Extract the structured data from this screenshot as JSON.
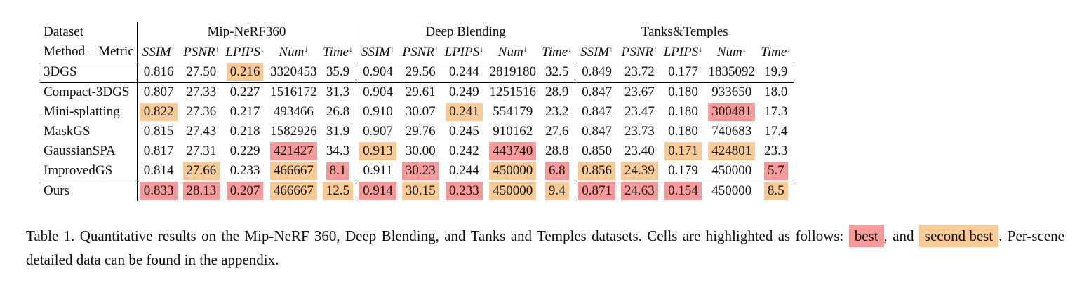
{
  "table": {
    "corner_top": "Dataset",
    "corner_bottom": "Method—Metric",
    "groups": [
      "Mip-NeRF360",
      "Deep Blending",
      "Tanks&Temples"
    ],
    "metrics": [
      {
        "name": "SSIM",
        "arrow": "↑"
      },
      {
        "name": "PSNR",
        "arrow": "↑"
      },
      {
        "name": "LPIPS",
        "arrow": "↓"
      },
      {
        "name": "Num",
        "arrow": "↓"
      },
      {
        "name": "Time",
        "arrow": "↓"
      }
    ],
    "rows": [
      {
        "method": "3DGS",
        "cells": [
          {
            "v": "0.816",
            "h": ""
          },
          {
            "v": "27.50",
            "h": ""
          },
          {
            "v": "0.216",
            "h": "second"
          },
          {
            "v": "3320453",
            "h": ""
          },
          {
            "v": "35.9",
            "h": ""
          },
          {
            "v": "0.904",
            "h": ""
          },
          {
            "v": "29.56",
            "h": ""
          },
          {
            "v": "0.244",
            "h": ""
          },
          {
            "v": "2819180",
            "h": ""
          },
          {
            "v": "32.5",
            "h": ""
          },
          {
            "v": "0.849",
            "h": ""
          },
          {
            "v": "23.72",
            "h": ""
          },
          {
            "v": "0.177",
            "h": ""
          },
          {
            "v": "1835092",
            "h": ""
          },
          {
            "v": "19.9",
            "h": ""
          }
        ]
      },
      {
        "method": "Compact-3DGS",
        "cells": [
          {
            "v": "0.807",
            "h": ""
          },
          {
            "v": "27.33",
            "h": ""
          },
          {
            "v": "0.227",
            "h": ""
          },
          {
            "v": "1516172",
            "h": ""
          },
          {
            "v": "31.3",
            "h": ""
          },
          {
            "v": "0.904",
            "h": ""
          },
          {
            "v": "29.61",
            "h": ""
          },
          {
            "v": "0.249",
            "h": ""
          },
          {
            "v": "1251516",
            "h": ""
          },
          {
            "v": "28.9",
            "h": ""
          },
          {
            "v": "0.847",
            "h": ""
          },
          {
            "v": "23.67",
            "h": ""
          },
          {
            "v": "0.180",
            "h": ""
          },
          {
            "v": "933650",
            "h": ""
          },
          {
            "v": "18.0",
            "h": ""
          }
        ]
      },
      {
        "method": "Mini-splatting",
        "cells": [
          {
            "v": "0.822",
            "h": "second"
          },
          {
            "v": "27.36",
            "h": ""
          },
          {
            "v": "0.217",
            "h": ""
          },
          {
            "v": "493466",
            "h": ""
          },
          {
            "v": "26.8",
            "h": ""
          },
          {
            "v": "0.910",
            "h": ""
          },
          {
            "v": "30.07",
            "h": ""
          },
          {
            "v": "0.241",
            "h": "second"
          },
          {
            "v": "554179",
            "h": ""
          },
          {
            "v": "23.2",
            "h": ""
          },
          {
            "v": "0.847",
            "h": ""
          },
          {
            "v": "23.47",
            "h": ""
          },
          {
            "v": "0.180",
            "h": ""
          },
          {
            "v": "300481",
            "h": "best"
          },
          {
            "v": "17.3",
            "h": ""
          }
        ]
      },
      {
        "method": "MaskGS",
        "cells": [
          {
            "v": "0.815",
            "h": ""
          },
          {
            "v": "27.43",
            "h": ""
          },
          {
            "v": "0.218",
            "h": ""
          },
          {
            "v": "1582926",
            "h": ""
          },
          {
            "v": "31.9",
            "h": ""
          },
          {
            "v": "0.907",
            "h": ""
          },
          {
            "v": "29.76",
            "h": ""
          },
          {
            "v": "0.245",
            "h": ""
          },
          {
            "v": "910162",
            "h": ""
          },
          {
            "v": "27.6",
            "h": ""
          },
          {
            "v": "0.847",
            "h": ""
          },
          {
            "v": "23.73",
            "h": ""
          },
          {
            "v": "0.180",
            "h": ""
          },
          {
            "v": "740683",
            "h": ""
          },
          {
            "v": "17.4",
            "h": ""
          }
        ]
      },
      {
        "method": "GaussianSPA",
        "cells": [
          {
            "v": "0.817",
            "h": ""
          },
          {
            "v": "27.31",
            "h": ""
          },
          {
            "v": "0.229",
            "h": ""
          },
          {
            "v": "421427",
            "h": "best"
          },
          {
            "v": "34.3",
            "h": ""
          },
          {
            "v": "0.913",
            "h": "second"
          },
          {
            "v": "30.00",
            "h": ""
          },
          {
            "v": "0.242",
            "h": ""
          },
          {
            "v": "443740",
            "h": "best"
          },
          {
            "v": "28.8",
            "h": ""
          },
          {
            "v": "0.850",
            "h": ""
          },
          {
            "v": "23.40",
            "h": ""
          },
          {
            "v": "0.171",
            "h": "second"
          },
          {
            "v": "424801",
            "h": "second"
          },
          {
            "v": "23.3",
            "h": ""
          }
        ]
      },
      {
        "method": "ImprovedGS",
        "cells": [
          {
            "v": "0.814",
            "h": ""
          },
          {
            "v": "27.66",
            "h": "second"
          },
          {
            "v": "0.233",
            "h": ""
          },
          {
            "v": "466667",
            "h": "second"
          },
          {
            "v": "8.1",
            "h": "best"
          },
          {
            "v": "0.911",
            "h": ""
          },
          {
            "v": "30.23",
            "h": "best"
          },
          {
            "v": "0.244",
            "h": ""
          },
          {
            "v": "450000",
            "h": "second"
          },
          {
            "v": "6.8",
            "h": "best"
          },
          {
            "v": "0.856",
            "h": "second"
          },
          {
            "v": "24.39",
            "h": "second"
          },
          {
            "v": "0.179",
            "h": ""
          },
          {
            "v": "450000",
            "h": ""
          },
          {
            "v": "5.7",
            "h": "best"
          }
        ]
      },
      {
        "method": "Ours",
        "cells": [
          {
            "v": "0.833",
            "h": "best"
          },
          {
            "v": "28.13",
            "h": "best"
          },
          {
            "v": "0.207",
            "h": "best"
          },
          {
            "v": "466667",
            "h": "second"
          },
          {
            "v": "12.5",
            "h": "second"
          },
          {
            "v": "0.914",
            "h": "best"
          },
          {
            "v": "30.15",
            "h": "second"
          },
          {
            "v": "0.233",
            "h": "best"
          },
          {
            "v": "450000",
            "h": "second"
          },
          {
            "v": "9.4",
            "h": "second"
          },
          {
            "v": "0.871",
            "h": "best"
          },
          {
            "v": "24.63",
            "h": "best"
          },
          {
            "v": "0.154",
            "h": "best"
          },
          {
            "v": "450000",
            "h": ""
          },
          {
            "v": "8.5",
            "h": "second"
          }
        ]
      }
    ]
  },
  "caption": {
    "prefix": "Table 1.  Quantitative results on the Mip-NeRF 360, Deep Blending, and Tanks and Temples datasets.  Cells are highlighted as follows: ",
    "best_label": "best",
    "middle": ", and ",
    "second_label": "second best",
    "suffix": ". Per-scene detailed data can be found in the appendix."
  },
  "colors": {
    "best": "#f79a9a",
    "second_best": "#f8cb96"
  }
}
